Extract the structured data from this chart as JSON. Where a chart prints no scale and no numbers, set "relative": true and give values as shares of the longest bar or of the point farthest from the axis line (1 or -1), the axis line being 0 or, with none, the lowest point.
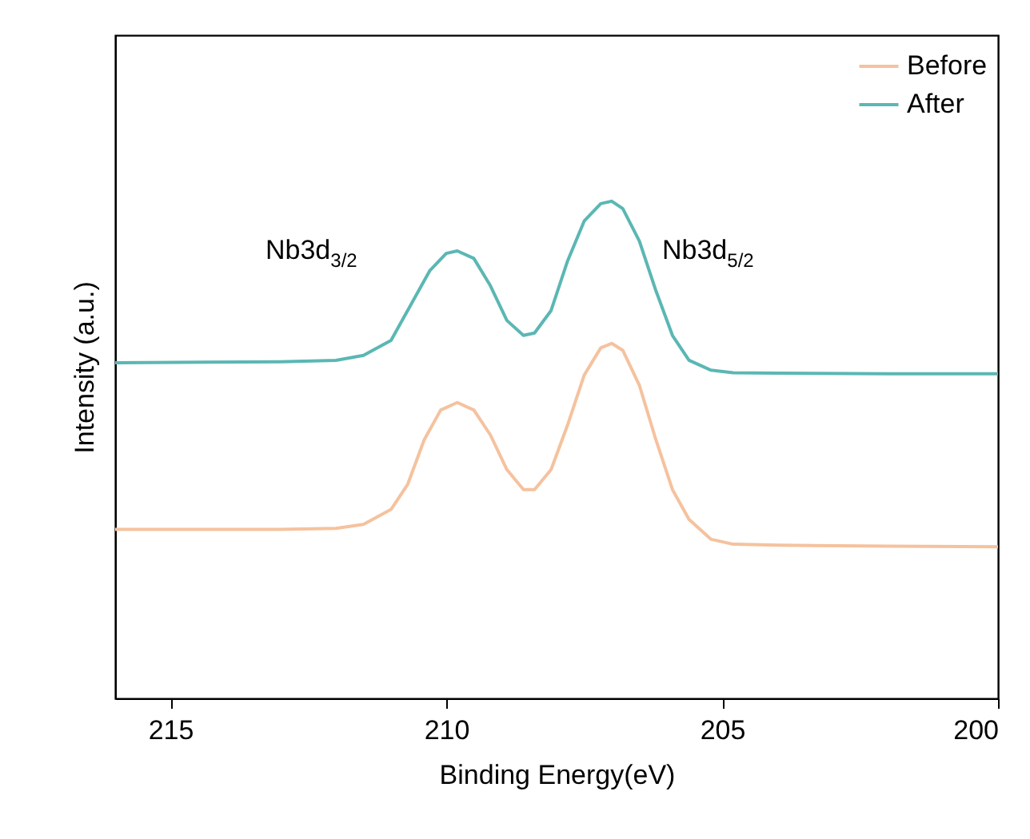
{
  "chart_data": {
    "type": "line",
    "relative": true,
    "xlabel": "Binding Energy(eV)",
    "ylabel": "Intensity (a.u.)",
    "xlim": [
      216,
      200
    ],
    "xticks": [
      215,
      210,
      205,
      200
    ],
    "grid": false,
    "legend": "top right",
    "marker": "none",
    "line_style": "solid",
    "annotations": [
      "Nb3d$_{3/2}$",
      "Nb3d$_{5/2}$"
    ],
    "series": [
      {
        "name": "Before",
        "color": "#f5c29e",
        "x": [
          216,
          213,
          212,
          211.5,
          211,
          210.7,
          210.4,
          210.1,
          209.8,
          209.5,
          209.2,
          208.9,
          208.6,
          208.4,
          208.1,
          207.8,
          207.5,
          207.2,
          207,
          206.8,
          206.5,
          206.2,
          205.9,
          205.6,
          205.2,
          204.8,
          204,
          202,
          200
        ],
        "values": [
          0.34,
          0.34,
          0.342,
          0.35,
          0.38,
          0.43,
          0.52,
          0.58,
          0.595,
          0.58,
          0.53,
          0.46,
          0.42,
          0.42,
          0.46,
          0.55,
          0.65,
          0.705,
          0.714,
          0.7,
          0.63,
          0.52,
          0.42,
          0.36,
          0.32,
          0.31,
          0.308,
          0.306,
          0.305
        ]
      },
      {
        "name": "After",
        "color": "#5bb7b3",
        "x": [
          216,
          213,
          212,
          211.5,
          211,
          210.6,
          210.3,
          210,
          209.8,
          209.5,
          209.2,
          208.9,
          208.6,
          208.4,
          208.1,
          207.8,
          207.5,
          207.2,
          207,
          206.8,
          206.5,
          206.2,
          205.9,
          205.6,
          205.2,
          204.8,
          204,
          202,
          200
        ],
        "values": [
          0.675,
          0.677,
          0.68,
          0.69,
          0.72,
          0.8,
          0.86,
          0.895,
          0.9,
          0.885,
          0.83,
          0.76,
          0.73,
          0.735,
          0.78,
          0.88,
          0.96,
          0.995,
          1,
          0.985,
          0.92,
          0.82,
          0.73,
          0.68,
          0.66,
          0.655,
          0.654,
          0.653,
          0.653
        ]
      }
    ]
  }
}
